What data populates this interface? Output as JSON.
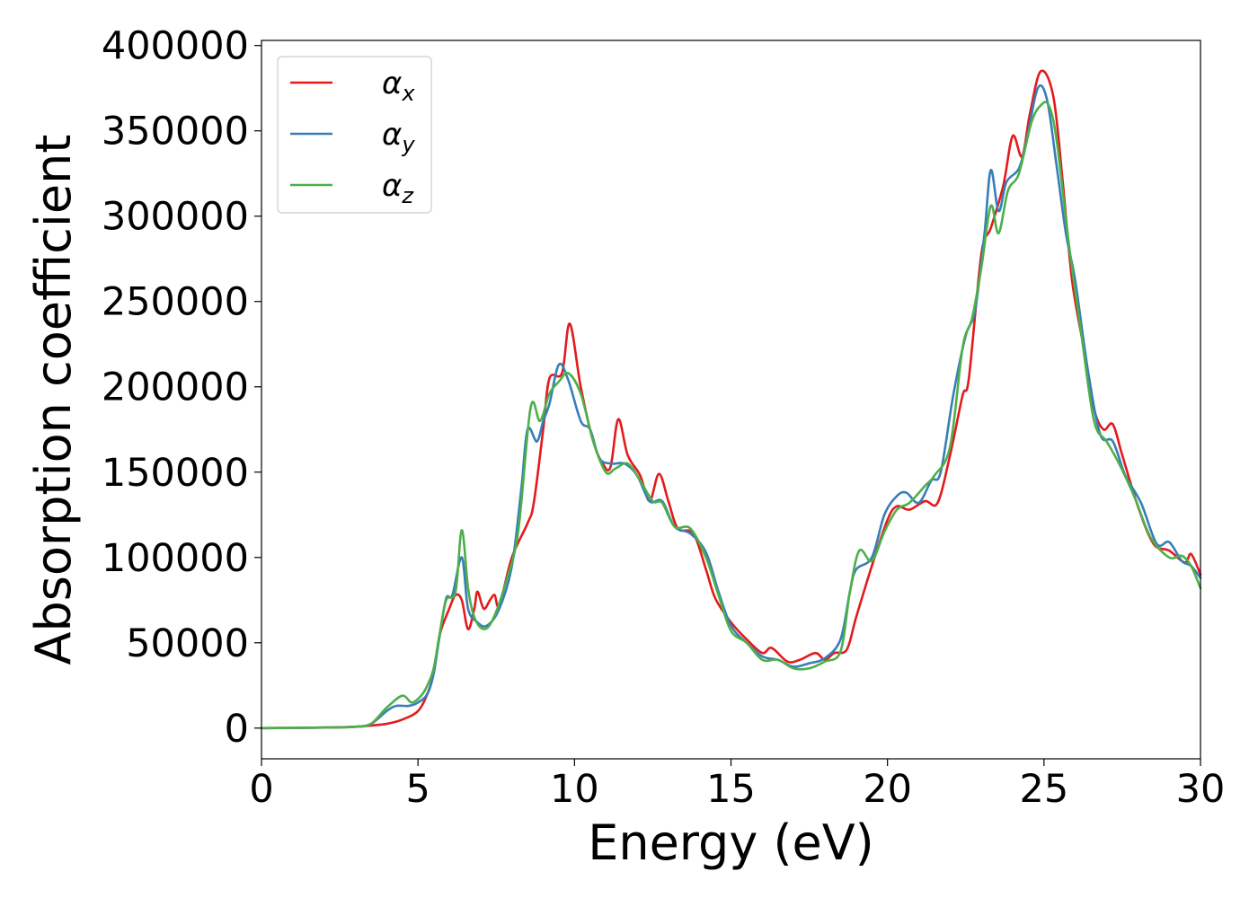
{
  "chart_data": {
    "type": "line",
    "title": "",
    "xlabel": "Energy (eV)",
    "ylabel": "Absorption coefficient",
    "xlim": [
      0,
      30
    ],
    "ylim": [
      -18000,
      403000
    ],
    "xticks": [
      0,
      5,
      10,
      15,
      20,
      25,
      30
    ],
    "yticks": [
      0,
      50000,
      100000,
      150000,
      200000,
      250000,
      300000,
      350000,
      400000
    ],
    "grid": false,
    "legend_position": "top-left",
    "series": [
      {
        "name": "α_x",
        "legend_base": "α",
        "legend_sub": "x",
        "color": "#e41a1c",
        "points": [
          [
            0,
            0
          ],
          [
            2,
            300
          ],
          [
            3,
            800
          ],
          [
            3.5,
            1500
          ],
          [
            4,
            2500
          ],
          [
            4.5,
            5000
          ],
          [
            5,
            10000
          ],
          [
            5.3,
            20000
          ],
          [
            5.5,
            32000
          ],
          [
            5.7,
            55000
          ],
          [
            6,
            70000
          ],
          [
            6.2,
            78000
          ],
          [
            6.4,
            75000
          ],
          [
            6.6,
            58000
          ],
          [
            6.8,
            70000
          ],
          [
            6.9,
            80000
          ],
          [
            7.1,
            70000
          ],
          [
            7.3,
            75000
          ],
          [
            7.45,
            78000
          ],
          [
            7.6,
            72000
          ],
          [
            8,
            100000
          ],
          [
            8.5,
            120000
          ],
          [
            8.7,
            132000
          ],
          [
            9,
            175000
          ],
          [
            9.2,
            205000
          ],
          [
            9.6,
            208000
          ],
          [
            9.85,
            237000
          ],
          [
            10.2,
            200000
          ],
          [
            10.6,
            168000
          ],
          [
            10.9,
            155000
          ],
          [
            11.15,
            153000
          ],
          [
            11.4,
            181000
          ],
          [
            11.7,
            160000
          ],
          [
            12.1,
            148000
          ],
          [
            12.4,
            133000
          ],
          [
            12.7,
            149000
          ],
          [
            13,
            133000
          ],
          [
            13.3,
            117000
          ],
          [
            13.8,
            114000
          ],
          [
            14.2,
            93000
          ],
          [
            14.5,
            76000
          ],
          [
            15,
            62000
          ],
          [
            15.5,
            52000
          ],
          [
            16,
            44000
          ],
          [
            16.3,
            47000
          ],
          [
            16.8,
            39000
          ],
          [
            17.2,
            40000
          ],
          [
            17.7,
            44000
          ],
          [
            18,
            40000
          ],
          [
            18.3,
            44000
          ],
          [
            18.7,
            46000
          ],
          [
            19,
            65000
          ],
          [
            19.5,
            95000
          ],
          [
            20,
            122000
          ],
          [
            20.3,
            130000
          ],
          [
            20.7,
            128000
          ],
          [
            21.2,
            133000
          ],
          [
            21.6,
            132000
          ],
          [
            22,
            160000
          ],
          [
            22.4,
            195000
          ],
          [
            22.6,
            205000
          ],
          [
            23,
            278000
          ],
          [
            23.3,
            293000
          ],
          [
            23.7,
            318000
          ],
          [
            24,
            347000
          ],
          [
            24.3,
            335000
          ],
          [
            24.55,
            360000
          ],
          [
            24.9,
            385000
          ],
          [
            25.3,
            370000
          ],
          [
            25.6,
            320000
          ],
          [
            25.9,
            262000
          ],
          [
            26.3,
            220000
          ],
          [
            26.6,
            187000
          ],
          [
            26.9,
            175000
          ],
          [
            27.2,
            178000
          ],
          [
            27.5,
            160000
          ],
          [
            28,
            130000
          ],
          [
            28.5,
            108000
          ],
          [
            29,
            104000
          ],
          [
            29.5,
            97000
          ],
          [
            29.7,
            102000
          ],
          [
            30,
            90000
          ]
        ]
      },
      {
        "name": "α_y",
        "legend_base": "α",
        "legend_sub": "y",
        "color": "#377eb8",
        "points": [
          [
            0,
            0
          ],
          [
            2,
            300
          ],
          [
            3,
            800
          ],
          [
            3.5,
            2500
          ],
          [
            4,
            10000
          ],
          [
            4.3,
            13000
          ],
          [
            4.7,
            13000
          ],
          [
            5,
            15000
          ],
          [
            5.3,
            20000
          ],
          [
            5.5,
            32000
          ],
          [
            5.7,
            55000
          ],
          [
            5.9,
            76000
          ],
          [
            6.1,
            78000
          ],
          [
            6.4,
            100000
          ],
          [
            6.6,
            70000
          ],
          [
            6.9,
            62000
          ],
          [
            7.2,
            60000
          ],
          [
            7.6,
            70000
          ],
          [
            8,
            95000
          ],
          [
            8.3,
            140000
          ],
          [
            8.5,
            175000
          ],
          [
            8.8,
            168000
          ],
          [
            9,
            180000
          ],
          [
            9.2,
            190000
          ],
          [
            9.5,
            213000
          ],
          [
            9.8,
            204000
          ],
          [
            10.2,
            180000
          ],
          [
            10.5,
            175000
          ],
          [
            10.8,
            158000
          ],
          [
            11.2,
            155000
          ],
          [
            11.6,
            155000
          ],
          [
            12,
            148000
          ],
          [
            12.4,
            133000
          ],
          [
            12.8,
            133000
          ],
          [
            13.2,
            118000
          ],
          [
            13.7,
            114000
          ],
          [
            14.2,
            103000
          ],
          [
            14.6,
            80000
          ],
          [
            15,
            60000
          ],
          [
            15.5,
            50000
          ],
          [
            16,
            42000
          ],
          [
            16.5,
            40000
          ],
          [
            17,
            36000
          ],
          [
            17.5,
            38000
          ],
          [
            18,
            41000
          ],
          [
            18.5,
            52000
          ],
          [
            18.8,
            80000
          ],
          [
            19,
            93000
          ],
          [
            19.5,
            100000
          ],
          [
            19.9,
            125000
          ],
          [
            20.3,
            136000
          ],
          [
            20.6,
            138000
          ],
          [
            21,
            132000
          ],
          [
            21.4,
            145000
          ],
          [
            21.7,
            150000
          ],
          [
            22.1,
            195000
          ],
          [
            22.5,
            230000
          ],
          [
            22.8,
            245000
          ],
          [
            23.1,
            290000
          ],
          [
            23.3,
            327000
          ],
          [
            23.55,
            303000
          ],
          [
            23.8,
            320000
          ],
          [
            24.2,
            328000
          ],
          [
            24.45,
            345000
          ],
          [
            24.8,
            375000
          ],
          [
            25.1,
            368000
          ],
          [
            25.4,
            330000
          ],
          [
            25.7,
            290000
          ],
          [
            26,
            262000
          ],
          [
            26.4,
            210000
          ],
          [
            26.8,
            172000
          ],
          [
            27.2,
            168000
          ],
          [
            27.6,
            148000
          ],
          [
            28.1,
            132000
          ],
          [
            28.6,
            108000
          ],
          [
            29,
            109000
          ],
          [
            29.4,
            98000
          ],
          [
            29.7,
            95000
          ],
          [
            30,
            88000
          ]
        ]
      },
      {
        "name": "α_z",
        "legend_base": "α",
        "legend_sub": "z",
        "color": "#4daf4a",
        "points": [
          [
            0,
            0
          ],
          [
            2,
            300
          ],
          [
            3,
            800
          ],
          [
            3.5,
            2500
          ],
          [
            4,
            12000
          ],
          [
            4.5,
            19000
          ],
          [
            4.8,
            15000
          ],
          [
            5.1,
            19000
          ],
          [
            5.3,
            25000
          ],
          [
            5.5,
            35000
          ],
          [
            5.7,
            56000
          ],
          [
            5.9,
            75000
          ],
          [
            6.2,
            80000
          ],
          [
            6.4,
            116000
          ],
          [
            6.6,
            82000
          ],
          [
            6.8,
            65000
          ],
          [
            7.1,
            58000
          ],
          [
            7.4,
            64000
          ],
          [
            7.8,
            85000
          ],
          [
            8.2,
            115000
          ],
          [
            8.6,
            188000
          ],
          [
            8.9,
            180000
          ],
          [
            9.2,
            196000
          ],
          [
            9.5,
            203000
          ],
          [
            9.8,
            208000
          ],
          [
            10.2,
            196000
          ],
          [
            10.6,
            168000
          ],
          [
            11,
            150000
          ],
          [
            11.3,
            152000
          ],
          [
            11.7,
            155000
          ],
          [
            12.1,
            145000
          ],
          [
            12.5,
            133000
          ],
          [
            12.8,
            132000
          ],
          [
            13.2,
            118000
          ],
          [
            13.7,
            117000
          ],
          [
            14.2,
            100000
          ],
          [
            14.6,
            78000
          ],
          [
            15,
            57000
          ],
          [
            15.5,
            50000
          ],
          [
            16,
            40000
          ],
          [
            16.5,
            40000
          ],
          [
            17,
            35000
          ],
          [
            17.5,
            35000
          ],
          [
            18,
            39000
          ],
          [
            18.5,
            45000
          ],
          [
            18.8,
            80000
          ],
          [
            19.1,
            104000
          ],
          [
            19.5,
            98000
          ],
          [
            19.9,
            115000
          ],
          [
            20.3,
            128000
          ],
          [
            20.7,
            132000
          ],
          [
            21.2,
            142000
          ],
          [
            21.5,
            148000
          ],
          [
            22,
            165000
          ],
          [
            22.4,
            223000
          ],
          [
            22.7,
            240000
          ],
          [
            23,
            270000
          ],
          [
            23.3,
            306000
          ],
          [
            23.55,
            290000
          ],
          [
            23.85,
            315000
          ],
          [
            24.2,
            325000
          ],
          [
            24.6,
            355000
          ],
          [
            24.9,
            365000
          ],
          [
            25.15,
            365000
          ],
          [
            25.4,
            345000
          ],
          [
            25.8,
            283000
          ],
          [
            26.2,
            230000
          ],
          [
            26.6,
            180000
          ],
          [
            27,
            168000
          ],
          [
            27.4,
            155000
          ],
          [
            27.9,
            135000
          ],
          [
            28.4,
            112000
          ],
          [
            29,
            100000
          ],
          [
            29.4,
            101000
          ],
          [
            29.7,
            95000
          ],
          [
            30,
            82000
          ]
        ]
      }
    ]
  }
}
